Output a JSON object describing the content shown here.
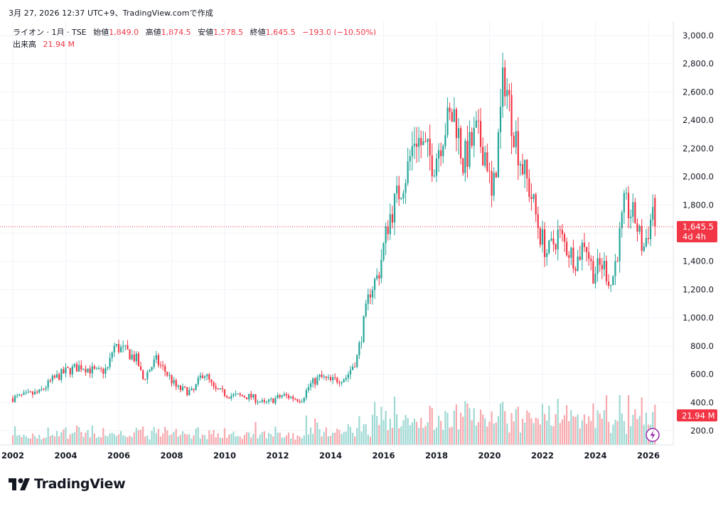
{
  "header": {
    "caption": "3月 27, 2026 12:37 UTC+9、TradingView.comで作成"
  },
  "legend": {
    "symbol": "ライオン · 1月 · TSE",
    "open_label": "始値",
    "open_value": "1,849.0",
    "high_label": "高値",
    "high_value": "1,874.5",
    "low_label": "安値",
    "low_value": "1,578.5",
    "close_label": "終値",
    "close_value": "1,645.5",
    "change": "−193.0 (−10.50%)",
    "volume_label": "出来高",
    "volume_value": "21.94 M"
  },
  "price_badge": {
    "price": "1,645.5",
    "countdown": "4d 4h"
  },
  "volume_badge": {
    "value": "21.94 M"
  },
  "footer": {
    "brand": "TradingView"
  },
  "colors": {
    "up": "#26a69a",
    "down": "#f23645",
    "up_vol": "#9fd9d3",
    "down_vol": "#f7a9ae",
    "grid": "#f0f3fa"
  },
  "chart_data": {
    "type": "candlestick",
    "title": "ライオン · 1月 · TSE",
    "ylim": [
      100,
      3100
    ],
    "yticks": [
      "3,000.0",
      "2,800.0",
      "2,600.0",
      "2,400.0",
      "2,200.0",
      "2,000.0",
      "1,800.0",
      "1,600.0",
      "1,400.0",
      "1,200.0",
      "1,000.0",
      "800.0",
      "600.0",
      "400.0",
      "200.0"
    ],
    "ytick_values": [
      3000,
      2800,
      2600,
      2400,
      2200,
      2000,
      1800,
      1600,
      1400,
      1200,
      1000,
      800,
      600,
      400,
      200
    ],
    "xlim": [
      2002.0,
      2026.6
    ],
    "xticks": [
      "2002",
      "2004",
      "2006",
      "2008",
      "2010",
      "2012",
      "2014",
      "2016",
      "2018",
      "2020",
      "2022",
      "2024",
      "2026"
    ],
    "xtick_values": [
      2002,
      2004,
      2006,
      2008,
      2010,
      2012,
      2014,
      2016,
      2018,
      2020,
      2022,
      2024,
      2026
    ],
    "last_price": 1645.5,
    "volume_scale_max": 90,
    "anchors": [
      [
        2002.0,
        430
      ],
      [
        2003.0,
        470
      ],
      [
        2003.5,
        560
      ],
      [
        2004.0,
        620
      ],
      [
        2004.6,
        660
      ],
      [
        2005.2,
        610
      ],
      [
        2005.6,
        640
      ],
      [
        2005.8,
        800
      ],
      [
        2006.3,
        760
      ],
      [
        2006.7,
        700
      ],
      [
        2006.9,
        560
      ],
      [
        2007.4,
        700
      ],
      [
        2007.8,
        610
      ],
      [
        2008.2,
        500
      ],
      [
        2008.8,
        470
      ],
      [
        2009.2,
        620
      ],
      [
        2009.6,
        490
      ],
      [
        2010.2,
        450
      ],
      [
        2011.0,
        440
      ],
      [
        2011.5,
        390
      ],
      [
        2012.2,
        450
      ],
      [
        2012.9,
        420
      ],
      [
        2013.2,
        520
      ],
      [
        2013.6,
        580
      ],
      [
        2014.0,
        550
      ],
      [
        2014.6,
        580
      ],
      [
        2015.0,
        720
      ],
      [
        2015.5,
        1200
      ],
      [
        2015.8,
        1300
      ],
      [
        2016.2,
        1700
      ],
      [
        2016.6,
        1900
      ],
      [
        2016.9,
        2050
      ],
      [
        2017.2,
        2300
      ],
      [
        2017.5,
        2200
      ],
      [
        2017.9,
        2100
      ],
      [
        2018.3,
        2350
      ],
      [
        2018.7,
        2450
      ],
      [
        2019.0,
        2100
      ],
      [
        2019.5,
        2300
      ],
      [
        2019.9,
        2150
      ],
      [
        2020.1,
        1800
      ],
      [
        2020.4,
        2400
      ],
      [
        2020.55,
        2750
      ],
      [
        2020.8,
        2450
      ],
      [
        2021.2,
        2100
      ],
      [
        2021.6,
        1850
      ],
      [
        2021.9,
        1600
      ],
      [
        2022.2,
        1450
      ],
      [
        2022.6,
        1600
      ],
      [
        2022.9,
        1500
      ],
      [
        2023.3,
        1400
      ],
      [
        2023.6,
        1560
      ],
      [
        2023.9,
        1320
      ],
      [
        2024.3,
        1380
      ],
      [
        2024.6,
        1230
      ],
      [
        2024.9,
        1550
      ],
      [
        2025.1,
        1800
      ],
      [
        2025.5,
        1700
      ],
      [
        2025.8,
        1480
      ],
      [
        2026.1,
        1700
      ],
      [
        2026.2,
        1850
      ],
      [
        2026.3,
        1645.5
      ]
    ]
  }
}
